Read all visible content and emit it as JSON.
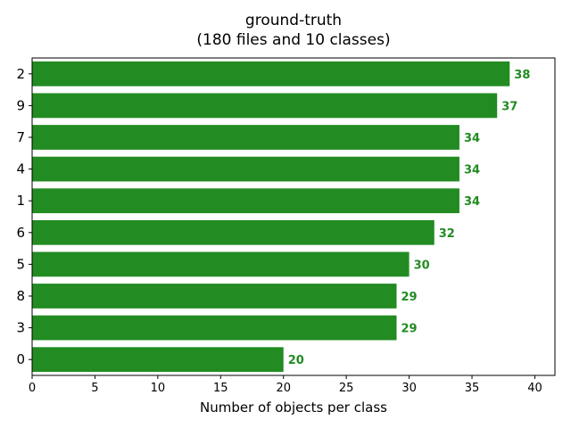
{
  "chart_data": {
    "type": "bar",
    "orientation": "horizontal",
    "title": "ground-truth",
    "subtitle": "(180 files and 10 classes)",
    "xlabel": "Number of objects per class",
    "ylabel": "",
    "categories": [
      "2",
      "9",
      "7",
      "4",
      "1",
      "6",
      "5",
      "8",
      "3",
      "0"
    ],
    "values": [
      38,
      37,
      34,
      34,
      34,
      32,
      30,
      29,
      29,
      20
    ],
    "xlim": [
      0,
      41.6
    ],
    "xticks": [
      "0",
      "5",
      "10",
      "15",
      "20",
      "25",
      "30",
      "35",
      "40"
    ],
    "bar_color": "#228b22",
    "label_color": "#228b22",
    "grid": false,
    "legend": "none"
  }
}
